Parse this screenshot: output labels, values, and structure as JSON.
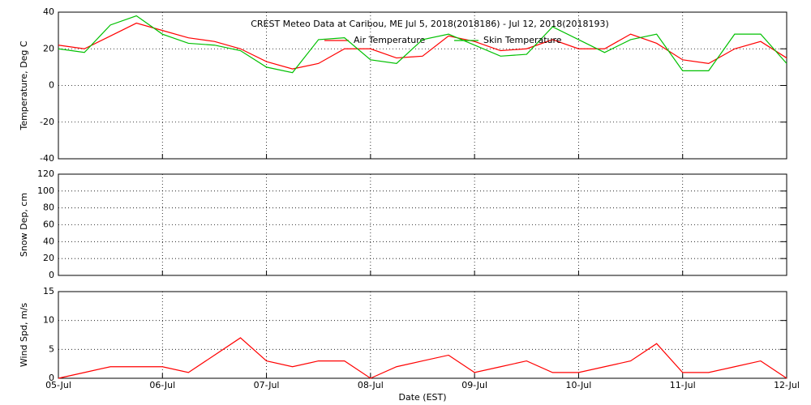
{
  "chart_data": [
    {
      "type": "line",
      "title": "CREST Meteo Data at Caribou, ME   Jul  5, 2018(2018186) - Jul 12, 2018(2018193)",
      "y_label": "Temperature, Deg C",
      "x": [
        0,
        0.25,
        0.5,
        0.75,
        1,
        1.25,
        1.5,
        1.75,
        2,
        2.25,
        2.5,
        2.75,
        3,
        3.25,
        3.5,
        3.75,
        4,
        4.25,
        4.5,
        4.75,
        5,
        5.25,
        5.5,
        5.75,
        6,
        6.25,
        6.5,
        6.75,
        7
      ],
      "xlim": [
        0,
        7
      ],
      "xticks": [
        0,
        1,
        2,
        3,
        4,
        5,
        6,
        7
      ],
      "ylim": [
        -40,
        40
      ],
      "yticks": [
        -40,
        -20,
        0,
        20,
        40
      ],
      "grid": true,
      "series": [
        {
          "name": "Air Temperature",
          "color": "#ff0000",
          "values": [
            22,
            20,
            27,
            34,
            30,
            26,
            24,
            20,
            13,
            9,
            12,
            20,
            20,
            15,
            16,
            27,
            24,
            19,
            20,
            25,
            20,
            20,
            28,
            23,
            14,
            12,
            20,
            24,
            15
          ]
        },
        {
          "name": "Skin Temperature",
          "color": "#00c000",
          "values": [
            20,
            18,
            33,
            38,
            28,
            23,
            22,
            19,
            10,
            7,
            25,
            26,
            14,
            12,
            25,
            28,
            22,
            16,
            17,
            32,
            25,
            18,
            25,
            28,
            8,
            8,
            28,
            28,
            12
          ]
        }
      ]
    },
    {
      "type": "line",
      "y_label": "Snow Dep, cm",
      "xlim": [
        0,
        7
      ],
      "xticks": [
        0,
        1,
        2,
        3,
        4,
        5,
        6,
        7
      ],
      "ylim": [
        0,
        120
      ],
      "yticks": [
        0,
        20,
        40,
        60,
        80,
        100,
        120
      ],
      "grid": true,
      "series": []
    },
    {
      "type": "line",
      "y_label": "Wind Spd, m/s",
      "x_label": "Date (EST)",
      "x": [
        0,
        0.25,
        0.5,
        0.75,
        1,
        1.25,
        1.5,
        1.75,
        2,
        2.25,
        2.5,
        2.75,
        3,
        3.25,
        3.5,
        3.75,
        4,
        4.25,
        4.5,
        4.75,
        5,
        5.25,
        5.5,
        5.75,
        6,
        6.25,
        6.5,
        6.75,
        7
      ],
      "xlim": [
        0,
        7
      ],
      "xticks": [
        {
          "value": 0,
          "label": "05-Jul"
        },
        {
          "value": 1,
          "label": "06-Jul"
        },
        {
          "value": 2,
          "label": "07-Jul"
        },
        {
          "value": 3,
          "label": "08-Jul"
        },
        {
          "value": 4,
          "label": "09-Jul"
        },
        {
          "value": 5,
          "label": "10-Jul"
        },
        {
          "value": 6,
          "label": "11-Jul"
        },
        {
          "value": 7,
          "label": "12-Jul"
        }
      ],
      "ylim": [
        0,
        15
      ],
      "yticks": [
        0,
        5,
        10,
        15
      ],
      "grid": true,
      "series": [
        {
          "color": "#ff0000",
          "values": [
            0,
            1,
            2,
            2,
            2,
            1,
            4,
            7,
            3,
            2,
            3,
            3,
            0,
            2,
            3,
            4,
            1,
            2,
            3,
            1,
            1,
            2,
            3,
            6,
            1,
            1,
            2,
            3,
            0
          ]
        }
      ]
    }
  ]
}
